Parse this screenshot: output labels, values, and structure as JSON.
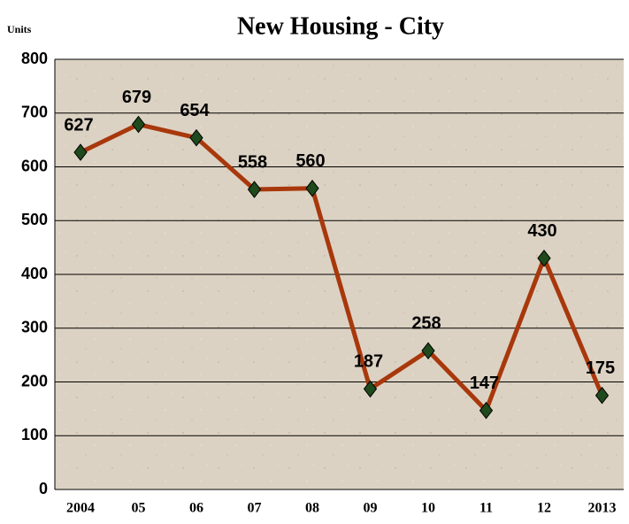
{
  "chart_data": {
    "type": "line",
    "title": "New Housing - City",
    "ylabel": "Units",
    "categories": [
      "2004",
      "05",
      "06",
      "07",
      "08",
      "09",
      "10",
      "11",
      "12",
      "2013"
    ],
    "series": [
      {
        "name": "New Housing",
        "color": "#a8380c",
        "marker_color": "#1f4a1c",
        "values": [
          627,
          679,
          654,
          558,
          560,
          187,
          258,
          147,
          430,
          175
        ]
      }
    ],
    "ylim": [
      0,
      800
    ],
    "yticks": [
      0,
      100,
      200,
      300,
      400,
      500,
      600,
      700,
      800
    ],
    "grid": true
  }
}
